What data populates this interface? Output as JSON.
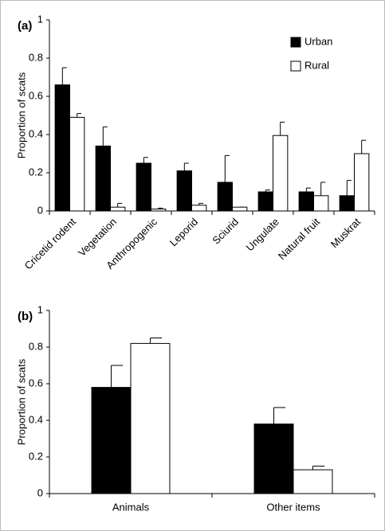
{
  "chart_data": [
    {
      "type": "bar",
      "title": "(a)",
      "y_label": "Proportion of scats",
      "categories": [
        "Cricetid rodent",
        "Vegetation",
        "Anthropogenic",
        "Leporid",
        "Sciurid",
        "Ungulate",
        "Natural fruit",
        "Muskrat"
      ],
      "series": [
        {
          "name": "Urban",
          "color": "#000000",
          "values": [
            0.66,
            0.34,
            0.25,
            0.21,
            0.15,
            0.1,
            0.1,
            0.08
          ],
          "errors": [
            0.09,
            0.1,
            0.03,
            0.04,
            0.14,
            0.01,
            0.02,
            0.08
          ]
        },
        {
          "name": "Rural",
          "color": "#ffffff",
          "values": [
            0.49,
            0.02,
            0.01,
            0.03,
            0.02,
            0.395,
            0.08,
            0.3
          ],
          "errors": [
            0.02,
            0.02,
            0.005,
            0.01,
            0.0,
            0.07,
            0.07,
            0.07
          ]
        }
      ],
      "ylim": [
        0,
        1
      ],
      "yticks": [
        0,
        0.2,
        0.4,
        0.6,
        0.8,
        1
      ],
      "legend": "upper right"
    },
    {
      "type": "bar",
      "title": "(b)",
      "y_label": "Proportion of scats",
      "categories": [
        "Animals",
        "Other items"
      ],
      "series": [
        {
          "color": "#000000",
          "values": [
            0.58,
            0.38
          ],
          "errors": [
            0.12,
            0.09
          ]
        },
        {
          "color": "#ffffff",
          "values": [
            0.82,
            0.13
          ],
          "errors": [
            0.03,
            0.02
          ]
        }
      ],
      "ylim": [
        0,
        1
      ],
      "yticks": [
        0,
        0.2,
        0.4,
        0.6,
        0.8,
        1
      ]
    }
  ]
}
